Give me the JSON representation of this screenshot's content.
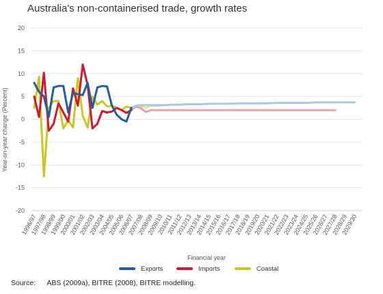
{
  "title": "Australia's non-containerised trade, growth rates",
  "source": {
    "label": "Source:",
    "text": "ABS (2009a), BITRE (2008), BITRE modelling."
  },
  "chart_data": {
    "type": "line",
    "title": "Australia's non-containerised trade, growth rates",
    "xlabel": "Financial year",
    "ylabel": "Year-on-year change (Percent)",
    "ylim": [
      -20,
      20
    ],
    "yticks": [
      -20,
      -15,
      -10,
      -5,
      0,
      5,
      10,
      15,
      20
    ],
    "grid": true,
    "legend_position": "bottom",
    "categories": [
      "1996/97",
      "1997/98",
      "1998/99",
      "1999/00",
      "2000/01",
      "2001/02",
      "2002/03",
      "2003/04",
      "2004/05",
      "2005/06",
      "2006/07",
      "2007/08",
      "2008/09",
      "2009/10",
      "2010/11",
      "2011/12",
      "2012/13",
      "2013/14",
      "2014/15",
      "2015/16",
      "2016/17",
      "2017/18",
      "2018/19",
      "2019/20",
      "2020/21",
      "2021/22",
      "2022/23",
      "2023/24",
      "2024/25",
      "2025/26",
      "2026/27",
      "2027/28",
      "2028/29",
      "2029/30"
    ],
    "projection_start_index": 10,
    "series": [
      {
        "name": "Exports",
        "color": "#1f5fa0",
        "projection_color": "#a9c8e2",
        "x": [
          0,
          0.5,
          1,
          1.5,
          2,
          2.5,
          3,
          3.5,
          4,
          4.5,
          5,
          5.5,
          6,
          6.5,
          7,
          7.5,
          8,
          8.5,
          9,
          9.5,
          10,
          10.5,
          11,
          11.5,
          12,
          12.5,
          13,
          13.5,
          14,
          14.5,
          15,
          15.5,
          16,
          17,
          18,
          19,
          20,
          21,
          22,
          23,
          24,
          25,
          26,
          27,
          28,
          29,
          30,
          31,
          32,
          33
        ],
        "values": [
          8,
          6,
          5,
          0.5,
          7,
          7.3,
          7.3,
          1.5,
          5.8,
          5.5,
          5.3,
          8,
          2.5,
          7,
          7.3,
          7.2,
          3,
          1,
          0,
          -0.5,
          2.5,
          3,
          3.1,
          3.1,
          3.1,
          3.1,
          3.1,
          3.1,
          3.2,
          3.2,
          3.2,
          3.3,
          3.3,
          3.3,
          3.4,
          3.4,
          3.4,
          3.5,
          3.5,
          3.5,
          3.5,
          3.6,
          3.6,
          3.6,
          3.6,
          3.7,
          3.7,
          3.7,
          3.7,
          3.7
        ]
      },
      {
        "name": "Imports",
        "color": "#d4172f",
        "projection_color": "#eaa0a9",
        "x": [
          0,
          0.5,
          1,
          1.5,
          2,
          2.5,
          3,
          3.5,
          4,
          4.5,
          5,
          5.5,
          6,
          6.5,
          7,
          7.5,
          8,
          8.5,
          9,
          9.5,
          10,
          10.5,
          11,
          11.5,
          12,
          12.5,
          13,
          13.5,
          14,
          14.5,
          15,
          15.5,
          16,
          16.5,
          17,
          17.5,
          18,
          18.5,
          19,
          20,
          21,
          22,
          23,
          24,
          25,
          26,
          27,
          28,
          29,
          30,
          31
        ],
        "values": [
          5,
          0.5,
          10.2,
          -2.5,
          -1,
          3.5,
          1.5,
          -0.5,
          6.8,
          3,
          12,
          7.5,
          -2,
          -1,
          1.8,
          1.5,
          1.7,
          2.5,
          2,
          1.4,
          2,
          2.8,
          2.4,
          1.6,
          2,
          2,
          2,
          2,
          2,
          2,
          2,
          2,
          2,
          2,
          2,
          2,
          2,
          2,
          2,
          2,
          2,
          2,
          2,
          2,
          2,
          2,
          2,
          2,
          2,
          2,
          2
        ]
      },
      {
        "name": "Coastal",
        "color": "#c8c81d",
        "projection_color": "#e4e59a",
        "x": [
          0,
          0.5,
          1,
          1.5,
          2,
          2.5,
          3,
          3.5,
          4,
          4.5,
          5,
          5.5,
          6,
          6.5,
          7,
          7.5,
          8,
          8.5,
          9,
          9.5,
          10,
          10.5,
          11,
          11.5,
          12,
          12.5,
          13
        ],
        "values": [
          2.5,
          9.3,
          -12.5,
          2.5,
          4,
          4,
          -2,
          -0.2,
          -1.8,
          9,
          0.8,
          -1.8,
          5,
          3.2,
          4,
          2.8,
          3,
          2.5,
          2,
          2.8,
          2.5,
          3,
          2.8,
          2.5,
          3,
          2.9,
          3
        ]
      }
    ]
  }
}
